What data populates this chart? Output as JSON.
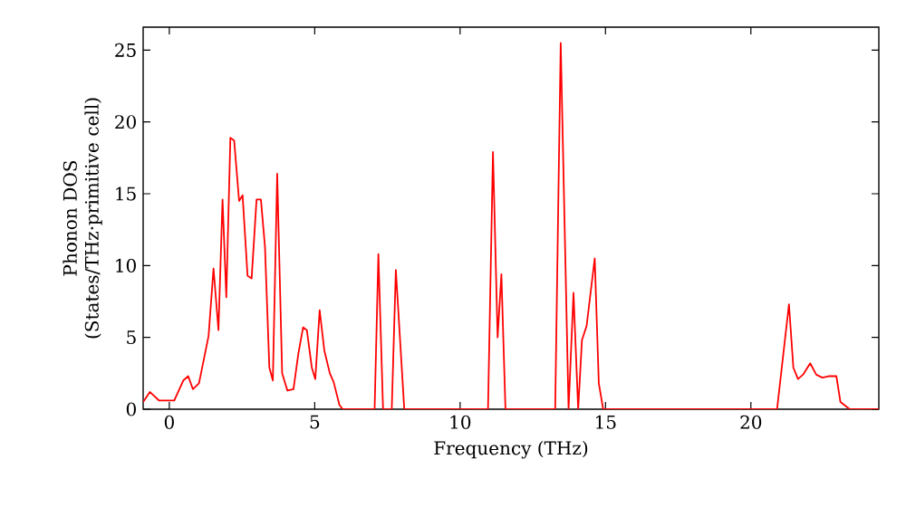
{
  "chart_data": {
    "type": "line",
    "xlabel": "Frequency (THz)",
    "ylabel": "Phonon DOS (States/THz·primitive cell)",
    "xlim": [
      -0.9,
      24.4
    ],
    "ylim": [
      0,
      26.6
    ],
    "xticks": [
      0,
      5,
      10,
      15,
      20
    ],
    "yticks": [
      0,
      5,
      10,
      15,
      20,
      25
    ],
    "series": [
      {
        "color": "#ff0000",
        "x": [
          -0.9,
          -0.67,
          -0.35,
          0.17,
          0.48,
          0.65,
          0.81,
          1.02,
          1.35,
          1.52,
          1.69,
          1.83,
          1.96,
          2.1,
          2.23,
          2.4,
          2.52,
          2.69,
          2.83,
          3.0,
          3.15,
          3.29,
          3.44,
          3.56,
          3.71,
          3.88,
          4.06,
          4.27,
          4.44,
          4.6,
          4.73,
          4.9,
          5.02,
          5.17,
          5.33,
          5.52,
          5.65,
          5.85,
          5.96,
          7.06,
          7.19,
          7.35,
          7.65,
          7.79,
          8.08,
          10.96,
          11.13,
          11.29,
          11.42,
          11.56,
          13.27,
          13.46,
          13.73,
          13.9,
          14.06,
          14.19,
          14.35,
          14.63,
          14.77,
          14.92,
          20.9,
          21.31,
          21.46,
          21.62,
          21.79,
          22.04,
          22.25,
          22.46,
          22.67,
          22.94,
          23.08,
          23.4,
          24.4
        ],
        "values": [
          0.5,
          1.2,
          0.6,
          0.6,
          2.0,
          2.3,
          1.4,
          1.8,
          5.1,
          9.8,
          5.5,
          14.6,
          7.8,
          18.9,
          18.7,
          14.5,
          14.9,
          9.3,
          9.1,
          14.6,
          14.6,
          11.3,
          2.9,
          2.0,
          16.4,
          2.5,
          1.3,
          1.4,
          3.9,
          5.7,
          5.5,
          2.9,
          2.1,
          6.9,
          4.1,
          2.5,
          1.9,
          0.3,
          0,
          0,
          10.8,
          0,
          0,
          9.7,
          0,
          0,
          17.9,
          5.0,
          9.4,
          0,
          0,
          25.5,
          0,
          8.1,
          0,
          4.8,
          5.8,
          10.5,
          1.8,
          0,
          0,
          7.3,
          2.9,
          2.1,
          2.4,
          3.2,
          2.4,
          2.2,
          2.3,
          2.3,
          0.5,
          0,
          0
        ]
      }
    ]
  }
}
